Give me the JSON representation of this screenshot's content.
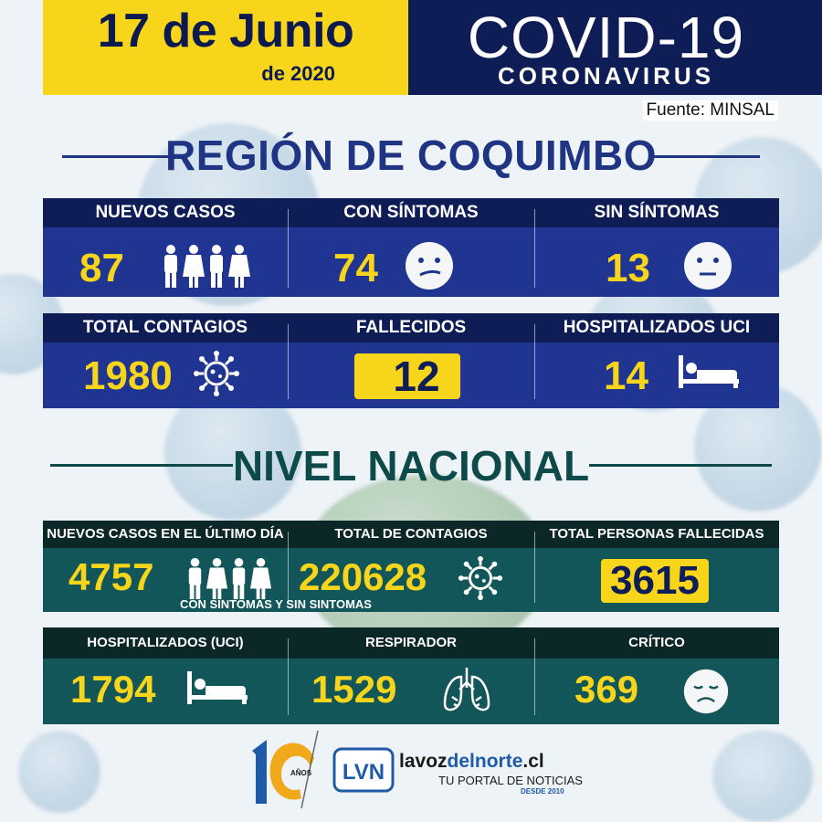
{
  "header": {
    "date": "17 de Junio",
    "year": "de 2020",
    "title": "COVID-19",
    "subtitle": "CORONAVIRUS",
    "source": "Fuente: MINSAL"
  },
  "region": {
    "title": "REGIÓN DE COQUIMBO",
    "row1": [
      {
        "label": "NUEVOS CASOS",
        "value": "87",
        "icon": "people-icon"
      },
      {
        "label": "CON SÍNTOMAS",
        "value": "74",
        "icon": "sick-face-icon"
      },
      {
        "label": "SIN SÍNTOMAS",
        "value": "13",
        "icon": "neutral-face-icon"
      }
    ],
    "row2": [
      {
        "label": "TOTAL CONTAGIOS",
        "value": "1980",
        "icon": "virus-icon"
      },
      {
        "label": "FALLECIDOS",
        "value": "12",
        "icon": ""
      },
      {
        "label": "HOSPITALIZADOS UCI",
        "value": "14",
        "icon": "hospital-bed-icon"
      }
    ]
  },
  "nacional": {
    "title": "NIVEL NACIONAL",
    "row1": [
      {
        "label": "NUEVOS CASOS EN EL ÚLTIMO DÍA",
        "value": "4757",
        "icon": "people-icon"
      },
      {
        "label": "TOTAL DE CONTAGIOS",
        "value": "220628",
        "icon": "virus-icon"
      },
      {
        "label": "TOTAL PERSONAS FALLECIDAS",
        "value": "3615",
        "icon": ""
      }
    ],
    "note": "CON SINTOMAS Y SIN SINTOMAS",
    "row2": [
      {
        "label": "HOSPITALIZADOS (UCI)",
        "value": "1794",
        "icon": "hospital-bed-icon"
      },
      {
        "label": "RESPIRADOR",
        "value": "1529",
        "icon": "lungs-icon"
      },
      {
        "label": "CRÍTICO",
        "value": "369",
        "icon": "sad-face-icon"
      }
    ]
  },
  "footer": {
    "anniversary_number": "1",
    "anniversary_unit": "AÑOS",
    "logo_initials": "LVN",
    "site_prefix": "lavoz",
    "site_mid": "del",
    "site_highlight": "norte",
    "site_suffix": ".cl",
    "tagline": "TU PORTAL DE NOTICIAS",
    "since": "DESDE 2010"
  },
  "colors": {
    "yellow": "#f7d51b",
    "navy": "#0f1d57",
    "blue": "#1f3591",
    "teal": "#12565a",
    "dark_teal": "#0c2727"
  }
}
